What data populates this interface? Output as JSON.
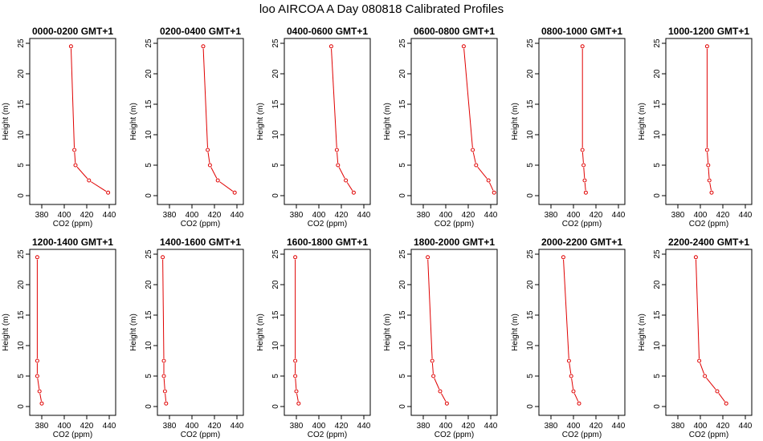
{
  "title": "loo AIRCOA A  Day 080818  Calibrated Profiles",
  "chart_data": [
    {
      "type": "line",
      "title": "0000-0200 GMT+1",
      "xlabel": "CO2 (ppm)",
      "ylabel": "Height (m)",
      "xlim": [
        370,
        445
      ],
      "ylim": [
        0,
        25
      ],
      "xticks": [
        "380",
        "400",
        "420",
        "440"
      ],
      "yticks": [
        "0",
        "5",
        "10",
        "15",
        "20",
        "25"
      ],
      "line_color": "#e00000",
      "x": [
        439,
        422,
        410,
        409,
        406
      ],
      "y": [
        0.5,
        2.5,
        5,
        7.5,
        24.5
      ]
    },
    {
      "type": "line",
      "title": "0200-0400 GMT+1",
      "xlabel": "CO2 (ppm)",
      "ylabel": "Height (m)",
      "xlim": [
        370,
        445
      ],
      "ylim": [
        0,
        25
      ],
      "xticks": [
        "380",
        "400",
        "420",
        "440"
      ],
      "yticks": [
        "0",
        "5",
        "10",
        "15",
        "20",
        "25"
      ],
      "line_color": "#e00000",
      "x": [
        438,
        423,
        416,
        414,
        410
      ],
      "y": [
        0.5,
        2.5,
        5,
        7.5,
        24.5
      ]
    },
    {
      "type": "line",
      "title": "0400-0600 GMT+1",
      "xlabel": "CO2 (ppm)",
      "ylabel": "Height (m)",
      "xlim": [
        370,
        445
      ],
      "ylim": [
        0,
        25
      ],
      "xticks": [
        "380",
        "400",
        "420",
        "440"
      ],
      "yticks": [
        "0",
        "5",
        "10",
        "15",
        "20",
        "25"
      ],
      "line_color": "#e00000",
      "x": [
        431,
        424,
        417,
        416,
        411
      ],
      "y": [
        0.5,
        2.5,
        5,
        7.5,
        24.5
      ]
    },
    {
      "type": "line",
      "title": "0600-0800 GMT+1",
      "xlabel": "CO2 (ppm)",
      "ylabel": "Height (m)",
      "xlim": [
        370,
        445
      ],
      "ylim": [
        0,
        25
      ],
      "xticks": [
        "380",
        "400",
        "420",
        "440"
      ],
      "yticks": [
        "0",
        "5",
        "10",
        "15",
        "20",
        "25"
      ],
      "line_color": "#e00000",
      "x": [
        443,
        438,
        427,
        424,
        416
      ],
      "y": [
        0.5,
        2.5,
        5,
        7.5,
        24.5
      ]
    },
    {
      "type": "line",
      "title": "0800-1000 GMT+1",
      "xlabel": "CO2 (ppm)",
      "ylabel": "Height (m)",
      "xlim": [
        370,
        445
      ],
      "ylim": [
        0,
        25
      ],
      "xticks": [
        "380",
        "400",
        "420",
        "440"
      ],
      "yticks": [
        "0",
        "5",
        "10",
        "15",
        "20",
        "25"
      ],
      "line_color": "#e00000",
      "x": [
        411,
        410,
        409,
        408,
        408
      ],
      "y": [
        0.5,
        2.5,
        5,
        7.5,
        24.5
      ]
    },
    {
      "type": "line",
      "title": "1000-1200 GMT+1",
      "xlabel": "CO2 (ppm)",
      "ylabel": "Height (m)",
      "xlim": [
        370,
        445
      ],
      "ylim": [
        0,
        25
      ],
      "xticks": [
        "380",
        "400",
        "420",
        "440"
      ],
      "yticks": [
        "0",
        "5",
        "10",
        "15",
        "20",
        "25"
      ],
      "line_color": "#e00000",
      "x": [
        410,
        408,
        407,
        406,
        406
      ],
      "y": [
        0.5,
        2.5,
        5,
        7.5,
        24.5
      ]
    },
    {
      "type": "line",
      "title": "1200-1400 GMT+1",
      "xlabel": "CO2 (ppm)",
      "ylabel": "Height (m)",
      "xlim": [
        370,
        445
      ],
      "ylim": [
        0,
        25
      ],
      "xticks": [
        "380",
        "400",
        "420",
        "440"
      ],
      "yticks": [
        "0",
        "5",
        "10",
        "15",
        "20",
        "25"
      ],
      "line_color": "#e00000",
      "x": [
        380,
        378,
        376,
        376,
        376
      ],
      "y": [
        0.5,
        2.5,
        5,
        7.5,
        24.5
      ]
    },
    {
      "type": "line",
      "title": "1400-1600 GMT+1",
      "xlabel": "CO2 (ppm)",
      "ylabel": "Height (m)",
      "xlim": [
        370,
        445
      ],
      "ylim": [
        0,
        25
      ],
      "xticks": [
        "380",
        "400",
        "420",
        "440"
      ],
      "yticks": [
        "0",
        "5",
        "10",
        "15",
        "20",
        "25"
      ],
      "line_color": "#e00000",
      "x": [
        377,
        376,
        375,
        375,
        374
      ],
      "y": [
        0.5,
        2.5,
        5,
        7.5,
        24.5
      ]
    },
    {
      "type": "line",
      "title": "1600-1800 GMT+1",
      "xlabel": "CO2 (ppm)",
      "ylabel": "Height (m)",
      "xlim": [
        370,
        445
      ],
      "ylim": [
        0,
        25
      ],
      "xticks": [
        "380",
        "400",
        "420",
        "440"
      ],
      "yticks": [
        "0",
        "5",
        "10",
        "15",
        "20",
        "25"
      ],
      "line_color": "#e00000",
      "x": [
        382,
        380,
        379,
        379,
        379
      ],
      "y": [
        0.5,
        2.5,
        5,
        7.5,
        24.5
      ]
    },
    {
      "type": "line",
      "title": "1800-2000 GMT+1",
      "xlabel": "CO2 (ppm)",
      "ylabel": "Height (m)",
      "xlim": [
        370,
        445
      ],
      "ylim": [
        0,
        25
      ],
      "xticks": [
        "380",
        "400",
        "420",
        "440"
      ],
      "yticks": [
        "0",
        "5",
        "10",
        "15",
        "20",
        "25"
      ],
      "line_color": "#e00000",
      "x": [
        401,
        395,
        389,
        388,
        384
      ],
      "y": [
        0.5,
        2.5,
        5,
        7.5,
        24.5
      ]
    },
    {
      "type": "line",
      "title": "2000-2200 GMT+1",
      "xlabel": "CO2 (ppm)",
      "ylabel": "Height (m)",
      "xlim": [
        370,
        445
      ],
      "ylim": [
        0,
        25
      ],
      "xticks": [
        "380",
        "400",
        "420",
        "440"
      ],
      "yticks": [
        "0",
        "5",
        "10",
        "15",
        "20",
        "25"
      ],
      "line_color": "#e00000",
      "x": [
        405,
        400,
        398,
        396,
        391
      ],
      "y": [
        0.5,
        2.5,
        5,
        7.5,
        24.5
      ]
    },
    {
      "type": "line",
      "title": "2200-2400 GMT+1",
      "xlabel": "CO2 (ppm)",
      "ylabel": "Height (m)",
      "xlim": [
        370,
        445
      ],
      "ylim": [
        0,
        25
      ],
      "xticks": [
        "380",
        "400",
        "420",
        "440"
      ],
      "yticks": [
        "0",
        "5",
        "10",
        "15",
        "20",
        "25"
      ],
      "line_color": "#e00000",
      "x": [
        423,
        415,
        404,
        399,
        396
      ],
      "y": [
        0.5,
        2.5,
        5,
        7.5,
        24.5
      ]
    }
  ]
}
